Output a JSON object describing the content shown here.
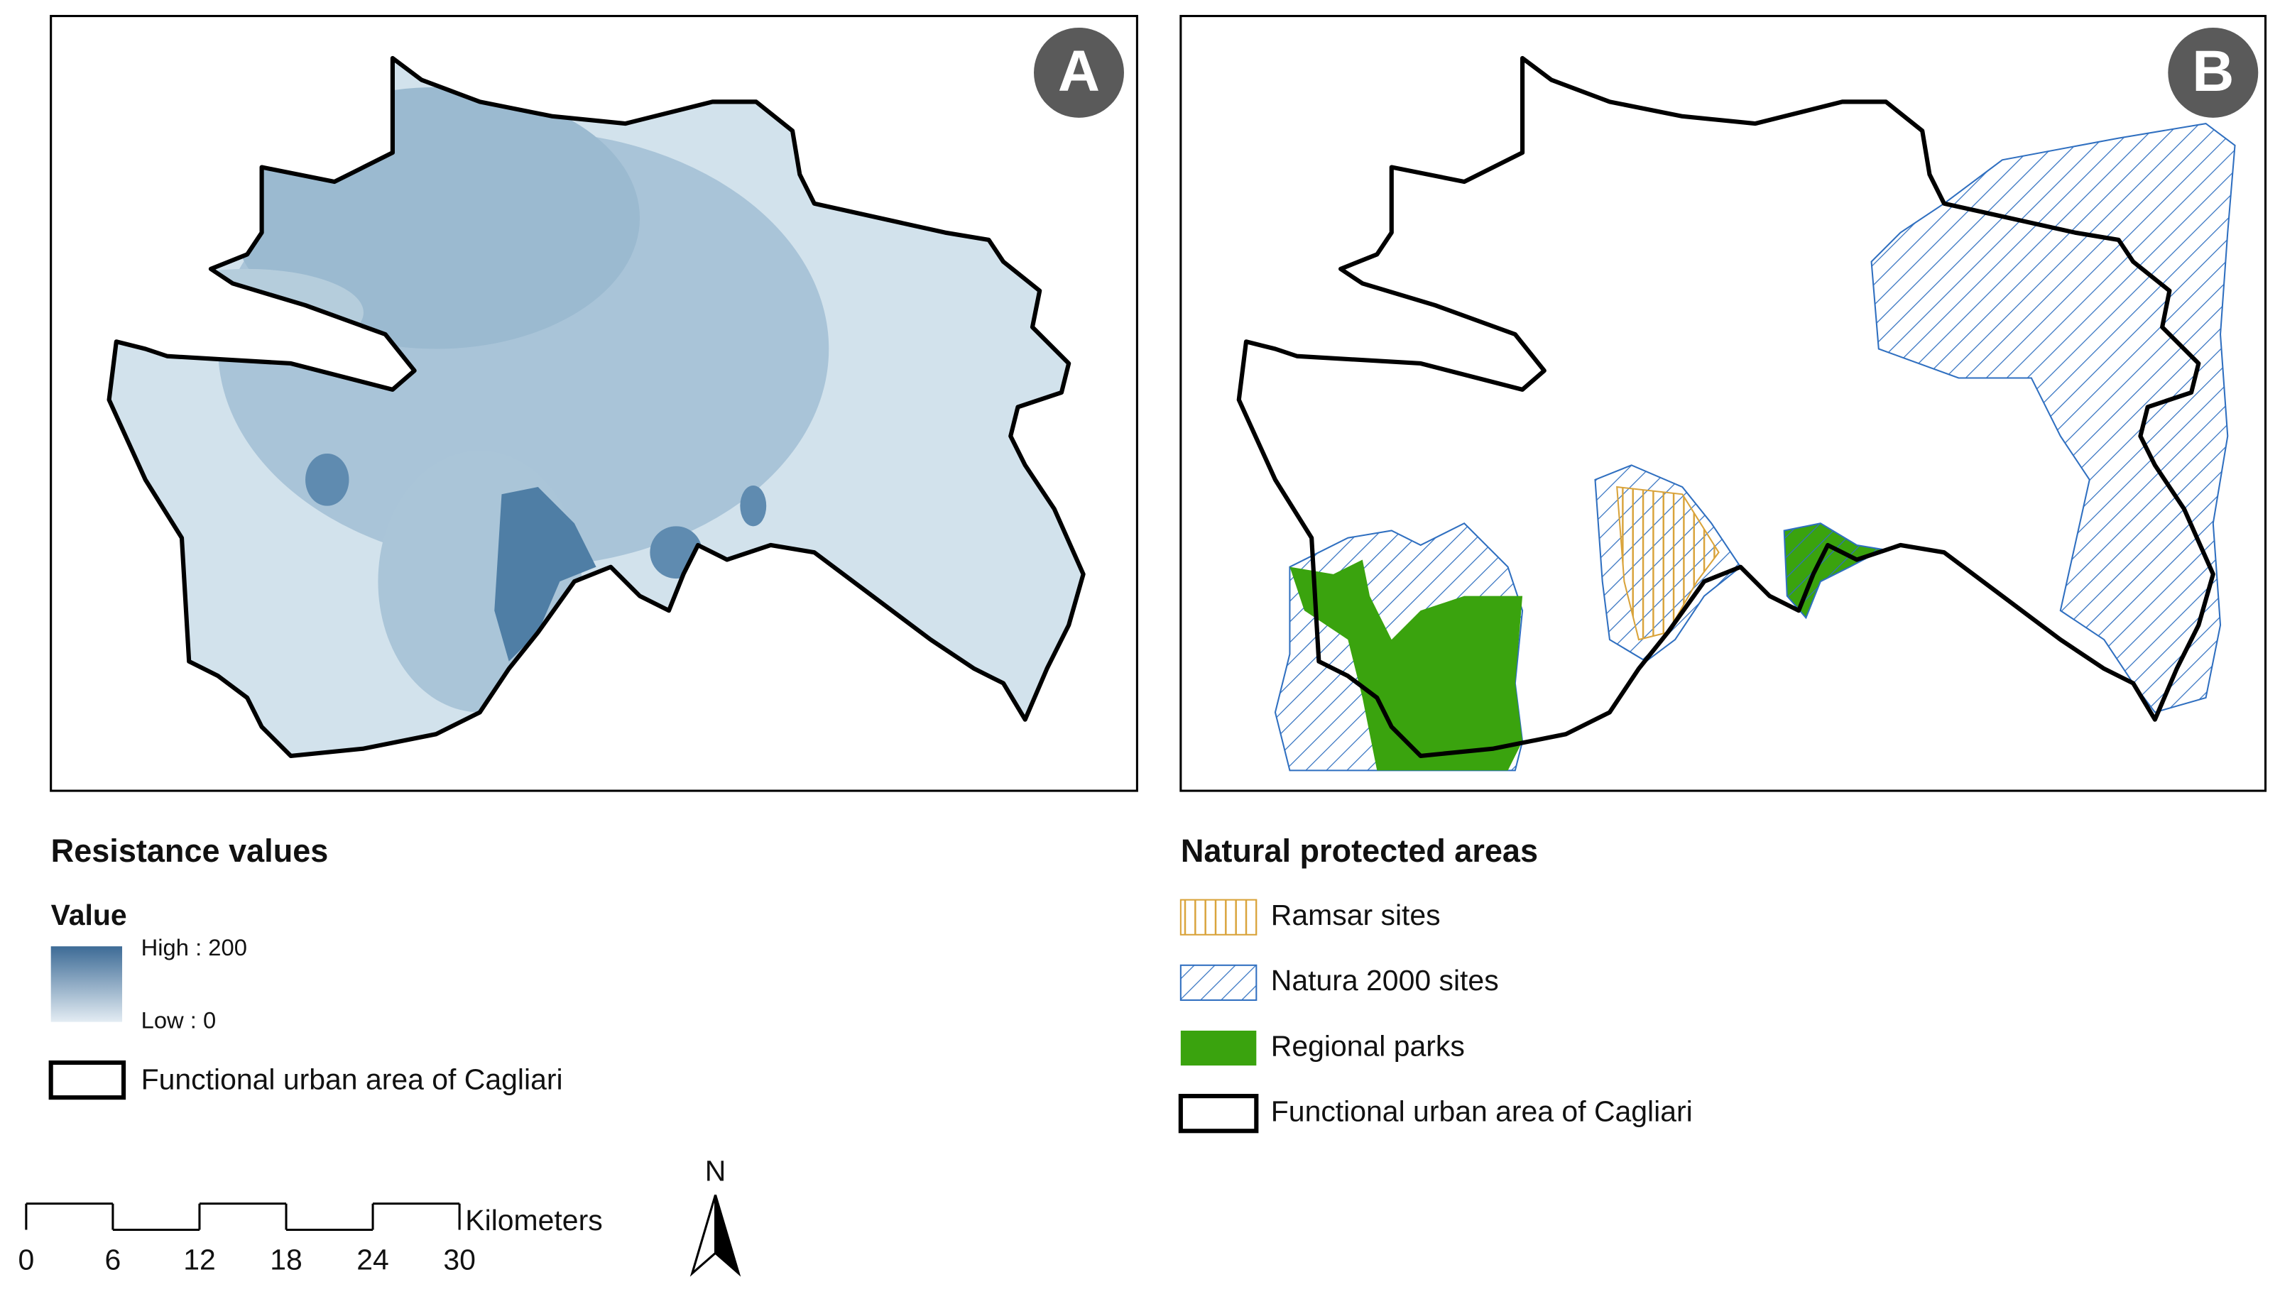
{
  "panels": [
    {
      "label": "A"
    },
    {
      "label": "B"
    }
  ],
  "legend_a": {
    "title": "Resistance values",
    "subtitle": "Value",
    "high": "High : 200",
    "low": "Low : 0",
    "boundary": "Functional urban area of Cagliari"
  },
  "legend_b": {
    "title": "Natural protected areas",
    "items": [
      "Ramsar sites",
      "Natura 2000 sites",
      "Regional parks",
      "Functional urban area of Cagliari"
    ]
  },
  "scale_bar": {
    "ticks": [
      0,
      6,
      12,
      18,
      24,
      30
    ],
    "unit": "Kilometers"
  },
  "north_arrow": {
    "label": "N"
  }
}
